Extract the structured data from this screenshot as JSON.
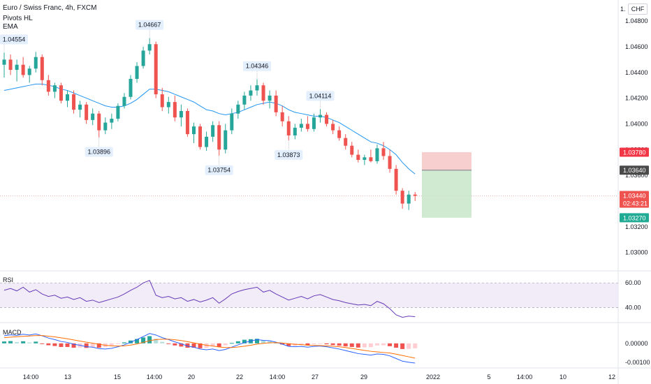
{
  "header": {
    "symbol_line": "Euro / Swiss Franc, 4h, FXCM",
    "indicator_1": "Pivots HL",
    "indicator_2": "EMA",
    "currency": "CHF",
    "top_right_tick": "1."
  },
  "panes": {
    "rsi_label": "RSI",
    "macd_label": "MACD"
  },
  "colors": {
    "up": "#26a69a",
    "down": "#ef5350",
    "ema": "#2196f3",
    "rsi": "#673ab7",
    "macd": "#2962ff",
    "signal": "#ff6d00",
    "stop_zone": "#f7c7c7",
    "target_zone": "#c8e6c9"
  },
  "chart_data": {
    "type": "candlestick",
    "price_axis": {
      "ticks": [
        "1.04800",
        "1.04600",
        "1.04400",
        "1.04200",
        "1.04000",
        "1.03800",
        "1.03600",
        "1.03400",
        "1.03200",
        "1.03000"
      ],
      "ylim": [
        1.029,
        1.0492
      ]
    },
    "time_axis": {
      "labels": [
        "14:00",
        "13",
        "15",
        "14:00",
        "20",
        "22",
        "14:00",
        "27",
        "29",
        "2022",
        "5",
        "14:00",
        "10",
        "12"
      ]
    },
    "candles": [
      [
        1.0446,
        1.04554,
        1.0436,
        1.045
      ],
      [
        1.045,
        1.0454,
        1.0438,
        1.0442
      ],
      [
        1.0442,
        1.045,
        1.0433,
        1.0446
      ],
      [
        1.0446,
        1.0452,
        1.0436,
        1.0438
      ],
      [
        1.0438,
        1.0445,
        1.0432,
        1.0443
      ],
      [
        1.0443,
        1.0456,
        1.044,
        1.0452
      ],
      [
        1.0452,
        1.0454,
        1.043,
        1.0434
      ],
      [
        1.0434,
        1.0438,
        1.0422,
        1.0425
      ],
      [
        1.0425,
        1.0432,
        1.042,
        1.043
      ],
      [
        1.043,
        1.0432,
        1.0416,
        1.0418
      ],
      [
        1.0418,
        1.0426,
        1.0413,
        1.0423
      ],
      [
        1.0423,
        1.0426,
        1.0408,
        1.0411
      ],
      [
        1.0411,
        1.0418,
        1.0405,
        1.0415
      ],
      [
        1.0415,
        1.0417,
        1.04,
        1.0403
      ],
      [
        1.0403,
        1.0412,
        1.0399,
        1.0408
      ],
      [
        1.0408,
        1.041,
        1.03896,
        1.0395
      ],
      [
        1.0395,
        1.0405,
        1.0392,
        1.0401
      ],
      [
        1.0401,
        1.0408,
        1.0396,
        1.0404
      ],
      [
        1.0404,
        1.0416,
        1.0402,
        1.0414
      ],
      [
        1.0414,
        1.0424,
        1.0412,
        1.0421
      ],
      [
        1.0421,
        1.0438,
        1.0419,
        1.0435
      ],
      [
        1.0435,
        1.0448,
        1.0432,
        1.0445
      ],
      [
        1.0445,
        1.046,
        1.0443,
        1.0457
      ],
      [
        1.0457,
        1.04667,
        1.0454,
        1.0462
      ],
      [
        1.0462,
        1.0464,
        1.042,
        1.0423
      ],
      [
        1.0423,
        1.0428,
        1.041,
        1.0413
      ],
      [
        1.0413,
        1.0421,
        1.0408,
        1.0417
      ],
      [
        1.0417,
        1.0422,
        1.0402,
        1.0405
      ],
      [
        1.0405,
        1.0415,
        1.0398,
        1.041
      ],
      [
        1.041,
        1.0412,
        1.039,
        1.0392
      ],
      [
        1.0392,
        1.0401,
        1.0385,
        1.0398
      ],
      [
        1.0398,
        1.04,
        1.038,
        1.0382
      ],
      [
        1.0382,
        1.0394,
        1.0379,
        1.039
      ],
      [
        1.039,
        1.0402,
        1.0386,
        1.0399
      ],
      [
        1.0399,
        1.0402,
        1.03754,
        1.038
      ],
      [
        1.038,
        1.04,
        1.0377,
        1.0395
      ],
      [
        1.0395,
        1.0412,
        1.0392,
        1.0408
      ],
      [
        1.0408,
        1.0418,
        1.0404,
        1.0415
      ],
      [
        1.0415,
        1.0425,
        1.0411,
        1.0422
      ],
      [
        1.0422,
        1.043,
        1.0418,
        1.0426
      ],
      [
        1.0426,
        1.04346,
        1.0422,
        1.043
      ],
      [
        1.043,
        1.0432,
        1.0415,
        1.0418
      ],
      [
        1.0418,
        1.0426,
        1.0412,
        1.0422
      ],
      [
        1.0422,
        1.0426,
        1.0406,
        1.0409
      ],
      [
        1.0409,
        1.0414,
        1.0398,
        1.0402
      ],
      [
        1.0402,
        1.0406,
        1.03873,
        1.0391
      ],
      [
        1.0391,
        1.04,
        1.0388,
        1.0397
      ],
      [
        1.0397,
        1.0404,
        1.0394,
        1.04
      ],
      [
        1.04,
        1.0406,
        1.0394,
        1.0396
      ],
      [
        1.0396,
        1.0408,
        1.0394,
        1.0405
      ],
      [
        1.0405,
        1.04114,
        1.0401,
        1.0407
      ],
      [
        1.0407,
        1.0409,
        1.0398,
        1.04
      ],
      [
        1.04,
        1.0403,
        1.0392,
        1.0395
      ],
      [
        1.0395,
        1.0398,
        1.0387,
        1.0389
      ],
      [
        1.0389,
        1.0392,
        1.038,
        1.0383
      ],
      [
        1.0383,
        1.0386,
        1.0374,
        1.0376
      ],
      [
        1.0376,
        1.038,
        1.037,
        1.0372
      ],
      [
        1.0372,
        1.0376,
        1.0368,
        1.0374
      ],
      [
        1.0374,
        1.038,
        1.037,
        1.0371
      ],
      [
        1.0371,
        1.0384,
        1.0369,
        1.0381
      ],
      [
        1.0381,
        1.0386,
        1.0372,
        1.0375
      ],
      [
        1.0375,
        1.038,
        1.0362,
        1.0365
      ],
      [
        1.0365,
        1.0368,
        1.0345,
        1.0348
      ],
      [
        1.0348,
        1.035,
        1.0334,
        1.0338
      ],
      [
        1.0338,
        1.0348,
        1.0333,
        1.0345
      ],
      [
        1.0345,
        1.0347,
        1.034,
        1.0344
      ]
    ],
    "ema": [
      1.0426,
      1.0427,
      1.0428,
      1.0429,
      1.043,
      1.0431,
      1.0431,
      1.043,
      1.0429,
      1.0427,
      1.0426,
      1.0424,
      1.0422,
      1.042,
      1.0418,
      1.0416,
      1.0414,
      1.0413,
      1.0413,
      1.0414,
      1.0416,
      1.0419,
      1.0423,
      1.0427,
      1.0427,
      1.0426,
      1.0425,
      1.0423,
      1.0421,
      1.0419,
      1.0417,
      1.0414,
      1.0411,
      1.041,
      1.0408,
      1.0407,
      1.0408,
      1.0409,
      1.0411,
      1.0413,
      1.0415,
      1.0416,
      1.0417,
      1.0416,
      1.0414,
      1.0411,
      1.0409,
      1.0408,
      1.0407,
      1.0406,
      1.0406,
      1.0405,
      1.0403,
      1.0401,
      1.0398,
      1.0395,
      1.0392,
      1.0389,
      1.0386,
      1.0385,
      1.0383,
      1.038,
      1.0376,
      1.037,
      1.0365,
      1.0361
    ],
    "pivots": [
      {
        "label": "1.04554",
        "index": 0,
        "kind": "high"
      },
      {
        "label": "1.04667",
        "index": 23,
        "kind": "high"
      },
      {
        "label": "1.04346",
        "index": 40,
        "kind": "high"
      },
      {
        "label": "1.04114",
        "index": 50,
        "kind": "high"
      },
      {
        "label": "1.03896",
        "index": 15,
        "kind": "low"
      },
      {
        "label": "1.03754",
        "index": 34,
        "kind": "low"
      },
      {
        "label": "1.03873",
        "index": 45,
        "kind": "low"
      }
    ],
    "position": {
      "entry": 1.0364,
      "stop": 1.0378,
      "target": 1.0327
    },
    "price_tags": [
      {
        "label": "1.03780",
        "value": 1.0378,
        "color": "#f23645"
      },
      {
        "label": "1.03640",
        "value": 1.0364,
        "color": "#4a4a4a"
      },
      {
        "label": "1.03440",
        "value": 1.0344,
        "color": "#ef5350",
        "countdown": "02:43:21"
      },
      {
        "label": "1.03270",
        "value": 1.0327,
        "color": "#22ab94"
      }
    ],
    "rsi": {
      "ticks": [
        "60.00",
        "40.00"
      ],
      "upper": 70,
      "lower": 30,
      "ylim": [
        10,
        85
      ],
      "values": [
        58,
        61,
        57,
        63,
        55,
        59,
        52,
        48,
        50,
        45,
        47,
        43,
        46,
        40,
        42,
        38,
        41,
        44,
        47,
        52,
        58,
        63,
        70,
        74,
        50,
        46,
        48,
        44,
        46,
        40,
        43,
        39,
        42,
        46,
        37,
        44,
        52,
        56,
        59,
        61,
        63,
        55,
        58,
        52,
        47,
        42,
        45,
        48,
        44,
        49,
        51,
        47,
        43,
        41,
        38,
        36,
        34,
        35,
        33,
        40,
        36,
        28,
        18,
        14,
        16,
        15
      ]
    },
    "macd": {
      "ticks": [
        "0.00000",
        "-0.00100"
      ],
      "ylim": [
        -0.00115,
        0.00095
      ],
      "macd": [
        0.0004,
        0.00045,
        0.00042,
        0.00048,
        0.00044,
        0.0005,
        0.0004,
        0.00028,
        0.0002,
        0.0001,
        5e-05,
        -5e-05,
        -0.0001,
        -0.00018,
        -0.0002,
        -0.00028,
        -0.0003,
        -0.00026,
        -0.00018,
        -8e-05,
        6e-05,
        0.0002,
        0.00036,
        0.00052,
        0.00044,
        0.0003,
        0.0002,
        8e-05,
        -2e-05,
        -0.00014,
        -0.0002,
        -0.0003,
        -0.00034,
        -0.0003,
        -0.00038,
        -0.00032,
        -0.0002,
        -8e-05,
        4e-05,
        0.00012,
        0.0002,
        0.00016,
        0.00014,
        6e-05,
        -4e-05,
        -0.00016,
        -0.00018,
        -0.00016,
        -0.0002,
        -0.00016,
        -0.00014,
        -0.00018,
        -0.00024,
        -0.0003,
        -0.00038,
        -0.00046,
        -0.00054,
        -0.00058,
        -0.00062,
        -0.00056,
        -0.00058,
        -0.00066,
        -0.0008,
        -0.00094,
        -0.001,
        -0.00104
      ],
      "signal": [
        0.0003,
        0.00033,
        0.00035,
        0.00037,
        0.00039,
        0.00041,
        0.00041,
        0.00038,
        0.00034,
        0.00029,
        0.00024,
        0.00018,
        0.00012,
        6e-05,
        1e-05,
        -5e-05,
        -0.0001,
        -0.00013,
        -0.00014,
        -0.00013,
        -9e-05,
        -3e-05,
        5e-05,
        0.00014,
        0.0002,
        0.00022,
        0.00022,
        0.00019,
        0.00015,
        9e-05,
        3e-05,
        -4e-05,
        -0.0001,
        -0.00014,
        -0.00019,
        -0.00022,
        -0.00022,
        -0.00019,
        -0.00015,
        -0.0001,
        -4e-05,
        0.0,
        3e-05,
        4e-05,
        2e-05,
        -2e-05,
        -5e-05,
        -7e-05,
        -0.0001,
        -0.00011,
        -0.00012,
        -0.00013,
        -0.00015,
        -0.00018,
        -0.00022,
        -0.00027,
        -0.00032,
        -0.00037,
        -0.00042,
        -0.00045,
        -0.00048,
        -0.00051,
        -0.00057,
        -0.00064,
        -0.00071,
        -0.00078
      ]
    }
  }
}
